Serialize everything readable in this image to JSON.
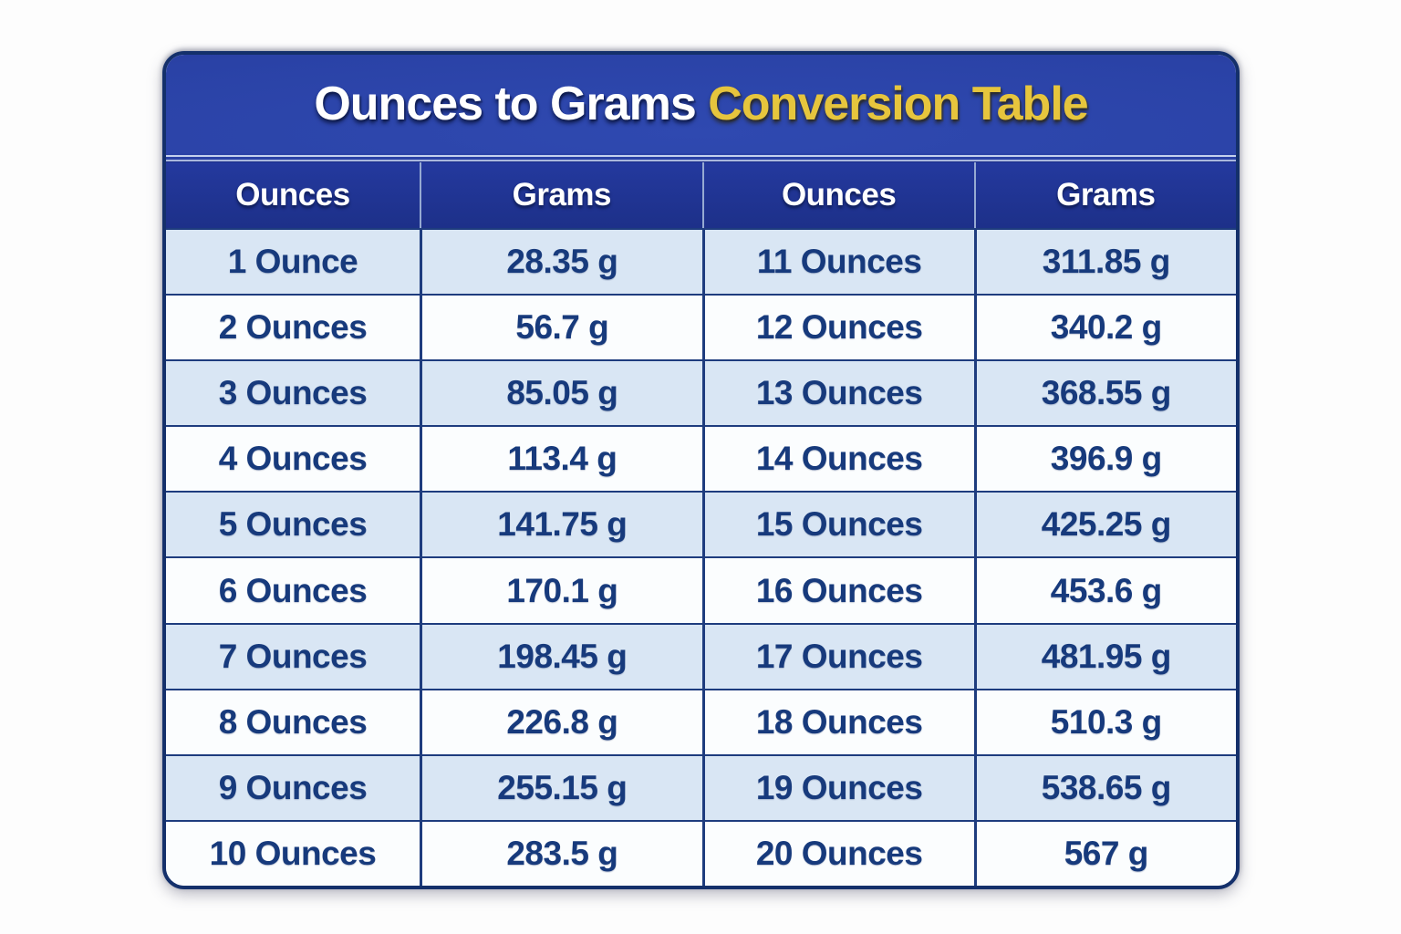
{
  "title": {
    "main": "Ounces to Grams ",
    "accent": "Conversion Table"
  },
  "colors": {
    "title_bar": "#2a42a6",
    "title_bar_light": "#2f49b0",
    "title_bar_dark": "#212f85",
    "header_row": "#1d3089",
    "header_row_light": "#24399e",
    "row_alt": "#d9e6f4",
    "row_white": "#fbfdfe",
    "text_navy": "#173a7c",
    "border_navy": "#1e3c7e",
    "border_outer": "#14306b",
    "accent_gold": "#e6c53d"
  },
  "chart_data": {
    "type": "table",
    "title": "Ounces to Grams Conversion Table",
    "columns": [
      "Ounces",
      "Grams",
      "Ounces",
      "Grams"
    ],
    "ounces": [
      1,
      2,
      3,
      4,
      5,
      6,
      7,
      8,
      9,
      10,
      11,
      12,
      13,
      14,
      15,
      16,
      17,
      18,
      19,
      20
    ],
    "grams": [
      28.35,
      56.7,
      85.05,
      113.4,
      141.75,
      170.1,
      198.45,
      226.8,
      255.15,
      283.5,
      311.85,
      340.2,
      368.55,
      396.9,
      425.25,
      453.6,
      481.95,
      510.3,
      538.65,
      567
    ],
    "display_rows": [
      [
        "1 Ounce",
        "28.35 g",
        "11 Ounces",
        "311.85 g"
      ],
      [
        "2 Ounces",
        "56.7 g",
        "12 Ounces",
        "340.2 g"
      ],
      [
        "3 Ounces",
        "85.05 g",
        "13 Ounces",
        "368.55 g"
      ],
      [
        "4 Ounces",
        "113.4 g",
        "14 Ounces",
        "396.9 g"
      ],
      [
        "5 Ounces",
        "141.75 g",
        "15 Ounces",
        "425.25 g"
      ],
      [
        "6 Ounces",
        "170.1 g",
        "16 Ounces",
        "453.6 g"
      ],
      [
        "7 Ounces",
        "198.45 g",
        "17 Ounces",
        "481.95 g"
      ],
      [
        "8 Ounces",
        "226.8 g",
        "18 Ounces",
        "510.3 g"
      ],
      [
        "9 Ounces",
        "255.15 g",
        "19 Ounces",
        "538.65 g"
      ],
      [
        "10 Ounces",
        "283.5 g",
        "20 Ounces",
        "567 g"
      ]
    ]
  }
}
